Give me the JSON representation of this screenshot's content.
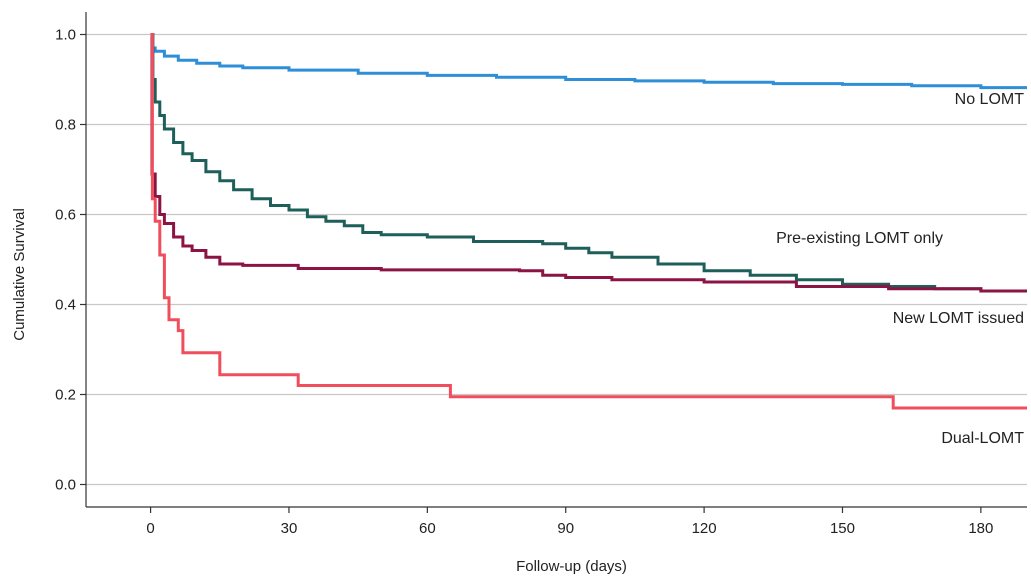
{
  "chart_data": {
    "type": "line",
    "step": true,
    "xlabel": "Follow-up (days)",
    "ylabel": "Cumulative Survival",
    "xlim": [
      -14,
      190
    ],
    "ylim": [
      -0.05,
      1.05
    ],
    "x_ticks": [
      0,
      30,
      60,
      90,
      120,
      150,
      180
    ],
    "y_ticks": [
      0.0,
      0.2,
      0.4,
      0.6,
      0.8,
      1.0
    ],
    "y_tick_labels": [
      "0.0",
      "0.2",
      "0.4",
      "0.6",
      "0.8",
      "1.0"
    ],
    "grid": "horizontal",
    "legend": "inline labels at right",
    "series": [
      {
        "name": "No LOMT",
        "color": "#2E8FD8",
        "points": [
          [
            0,
            1.0
          ],
          [
            0.3,
            0.97
          ],
          [
            1,
            0.963
          ],
          [
            3,
            0.952
          ],
          [
            6,
            0.943
          ],
          [
            10,
            0.936
          ],
          [
            15,
            0.93
          ],
          [
            20,
            0.926
          ],
          [
            30,
            0.921
          ],
          [
            45,
            0.914
          ],
          [
            60,
            0.909
          ],
          [
            75,
            0.905
          ],
          [
            90,
            0.9
          ],
          [
            105,
            0.897
          ],
          [
            120,
            0.894
          ],
          [
            135,
            0.891
          ],
          [
            150,
            0.889
          ],
          [
            165,
            0.886
          ],
          [
            180,
            0.882
          ],
          [
            190,
            0.879
          ]
        ]
      },
      {
        "name": "Pre-existing LOMT only",
        "color": "#1E5F5A",
        "points": [
          [
            0,
            1.0
          ],
          [
            0.5,
            0.9
          ],
          [
            1,
            0.85
          ],
          [
            2,
            0.82
          ],
          [
            3,
            0.79
          ],
          [
            5,
            0.76
          ],
          [
            7,
            0.735
          ],
          [
            9,
            0.72
          ],
          [
            12,
            0.695
          ],
          [
            15,
            0.675
          ],
          [
            18,
            0.655
          ],
          [
            22,
            0.635
          ],
          [
            26,
            0.62
          ],
          [
            30,
            0.61
          ],
          [
            34,
            0.595
          ],
          [
            38,
            0.585
          ],
          [
            42,
            0.575
          ],
          [
            46,
            0.56
          ],
          [
            50,
            0.555
          ],
          [
            60,
            0.55
          ],
          [
            70,
            0.54
          ],
          [
            85,
            0.535
          ],
          [
            90,
            0.525
          ],
          [
            95,
            0.515
          ],
          [
            100,
            0.505
          ],
          [
            110,
            0.49
          ],
          [
            120,
            0.475
          ],
          [
            130,
            0.465
          ],
          [
            140,
            0.455
          ],
          [
            150,
            0.445
          ],
          [
            160,
            0.44
          ],
          [
            170,
            0.435
          ],
          [
            180,
            0.43
          ],
          [
            190,
            0.428
          ]
        ]
      },
      {
        "name": "New LOMT issued",
        "color": "#8C1445",
        "points": [
          [
            0,
            1.0
          ],
          [
            0.3,
            0.69
          ],
          [
            1,
            0.64
          ],
          [
            2,
            0.6
          ],
          [
            3,
            0.58
          ],
          [
            5,
            0.55
          ],
          [
            7,
            0.53
          ],
          [
            9,
            0.52
          ],
          [
            12,
            0.505
          ],
          [
            15,
            0.49
          ],
          [
            20,
            0.487
          ],
          [
            32,
            0.48
          ],
          [
            50,
            0.477
          ],
          [
            80,
            0.475
          ],
          [
            85,
            0.465
          ],
          [
            90,
            0.46
          ],
          [
            100,
            0.455
          ],
          [
            120,
            0.45
          ],
          [
            140,
            0.44
          ],
          [
            160,
            0.435
          ],
          [
            180,
            0.43
          ],
          [
            190,
            0.432
          ]
        ]
      },
      {
        "name": "Dual-LOMT",
        "color": "#F04E5C",
        "points": [
          [
            0,
            1.0
          ],
          [
            0.4,
            0.635
          ],
          [
            1,
            0.585
          ],
          [
            2,
            0.51
          ],
          [
            3,
            0.415
          ],
          [
            4,
            0.366
          ],
          [
            6,
            0.342
          ],
          [
            7,
            0.293
          ],
          [
            15,
            0.244
          ],
          [
            32,
            0.22
          ],
          [
            65,
            0.195
          ],
          [
            161,
            0.17
          ],
          [
            190,
            0.17
          ]
        ]
      }
    ]
  }
}
